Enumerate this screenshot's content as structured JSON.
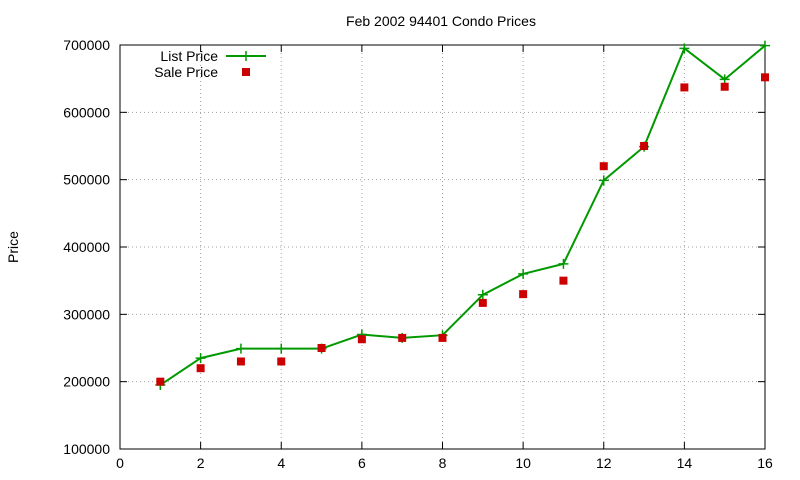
{
  "chart_data": {
    "type": "line",
    "title": "Feb 2002 94401 Condo Prices",
    "xlabel": "",
    "ylabel": "Price",
    "xlim": [
      0,
      16
    ],
    "ylim": [
      100000,
      700000
    ],
    "xticks": [
      0,
      2,
      4,
      6,
      8,
      10,
      12,
      14,
      16
    ],
    "yticks": [
      100000,
      200000,
      300000,
      400000,
      500000,
      600000,
      700000
    ],
    "grid": true,
    "legend_position": "top-left",
    "series": [
      {
        "name": "List Price",
        "style": "line-with-plus-markers",
        "color": "#009900",
        "x": [
          1,
          2,
          3,
          4,
          5,
          6,
          7,
          8,
          9,
          10,
          11,
          12,
          13,
          14,
          15,
          16
        ],
        "y": [
          195000,
          235000,
          249000,
          249000,
          249000,
          270000,
          265000,
          269000,
          329000,
          360000,
          375000,
          499000,
          549000,
          695000,
          649000,
          699000
        ]
      },
      {
        "name": "Sale Price",
        "style": "square-markers",
        "color": "#cc0000",
        "x": [
          1,
          2,
          3,
          4,
          5,
          6,
          7,
          8,
          9,
          10,
          11,
          12,
          13,
          14,
          15,
          16
        ],
        "y": [
          200000,
          220000,
          230000,
          230000,
          250000,
          263000,
          265000,
          265000,
          317000,
          330000,
          350000,
          520000,
          550000,
          637000,
          638000,
          652000
        ]
      }
    ]
  }
}
